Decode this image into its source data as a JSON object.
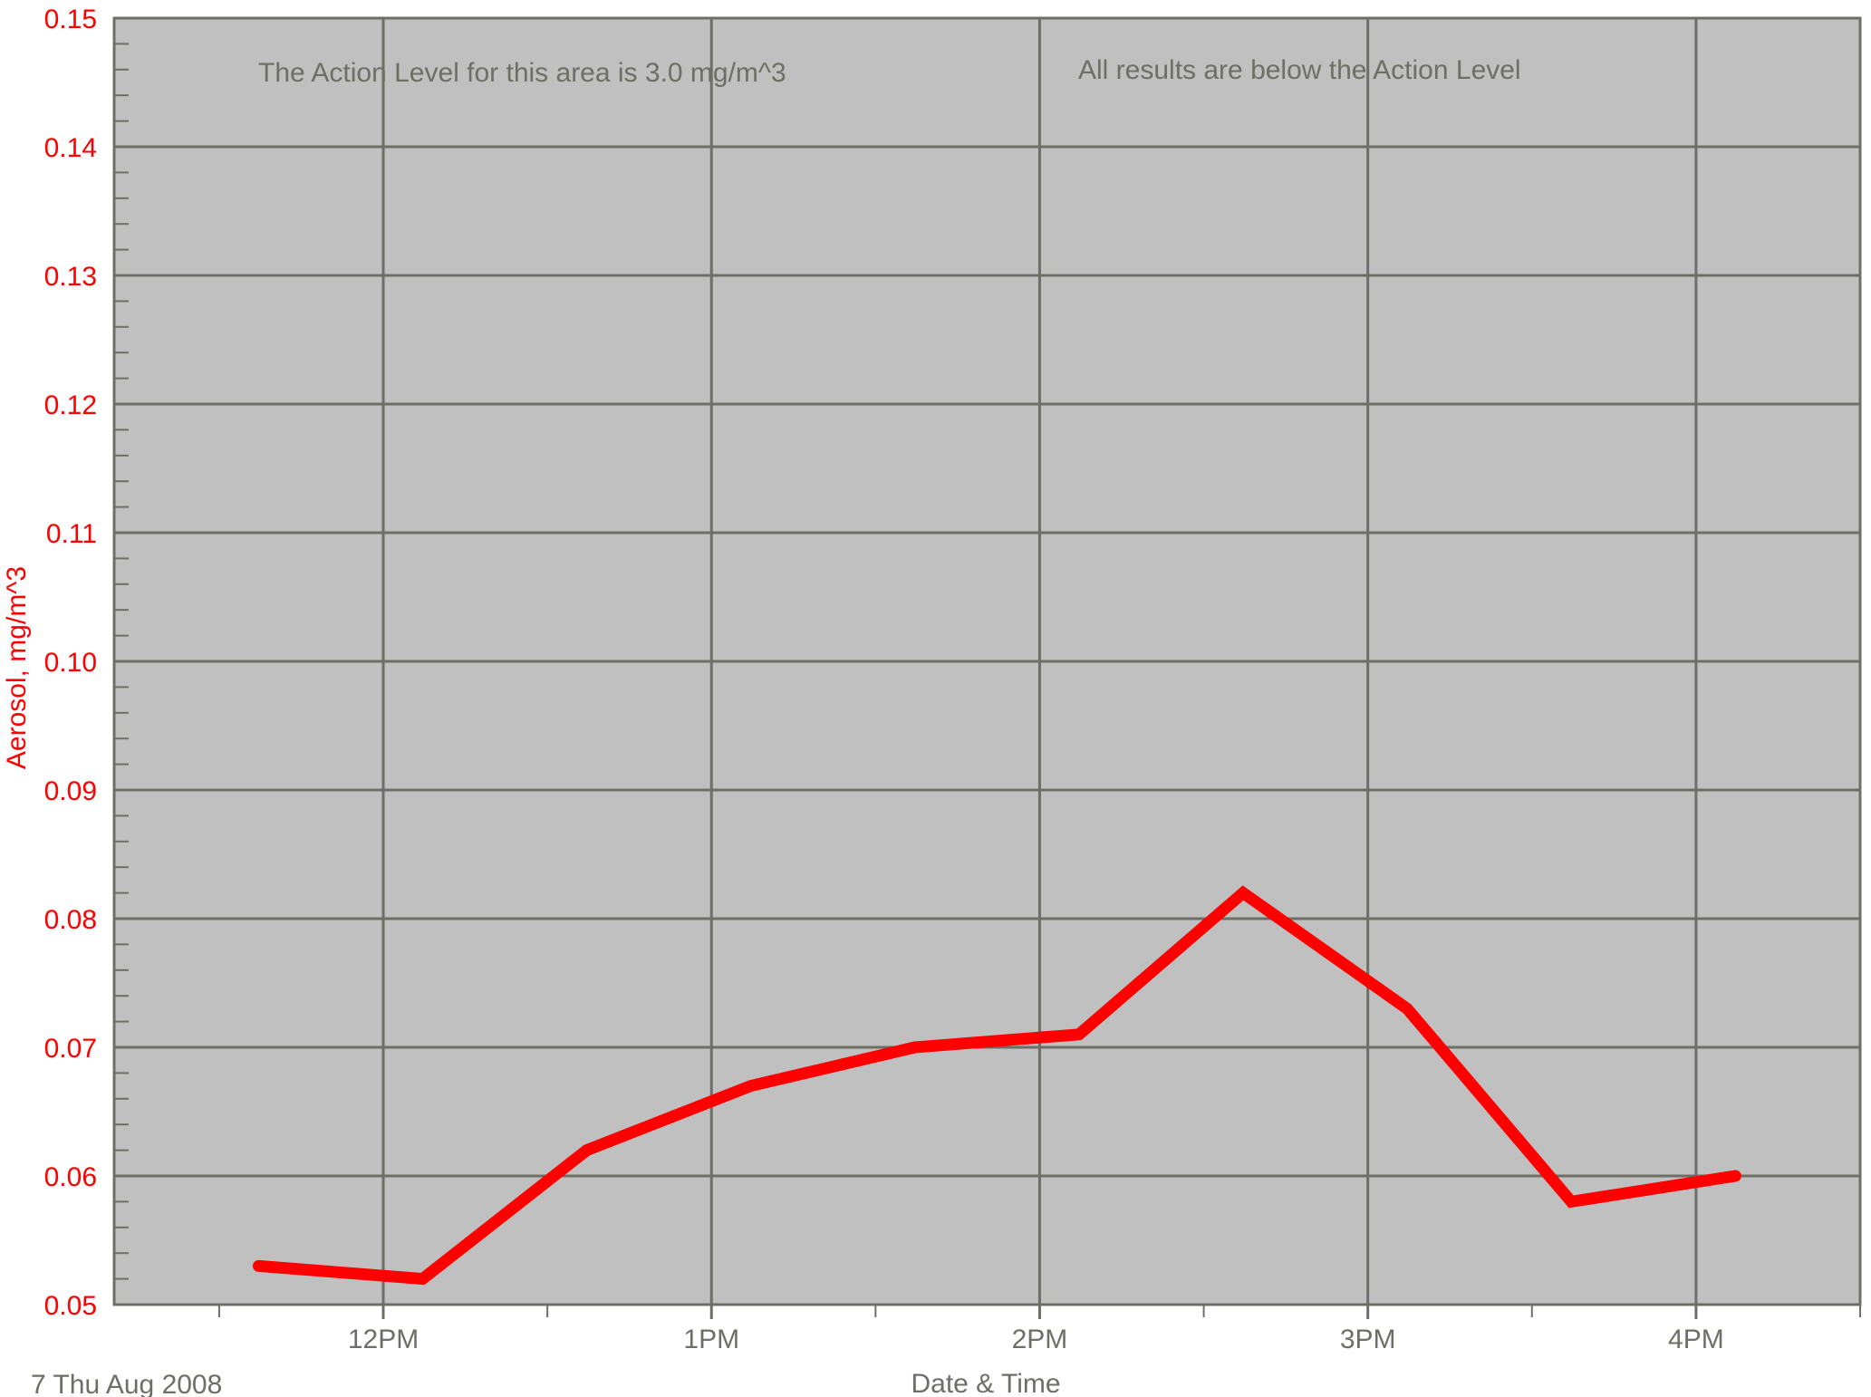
{
  "colors": {
    "background": "#ffffff",
    "plot_area": "#c0c0c0",
    "grid": "#6e6e66",
    "axis_text": "#6e6e66",
    "y_axis_text": "#ff0000",
    "series_line": "#ff0000"
  },
  "chart_data": {
    "type": "line",
    "title": "",
    "xlabel": "Date & Time",
    "ylabel": "Aerosol, mg/m^3",
    "date_label": "7 Thu Aug 2008",
    "annotations": [
      "The Action Level for this area is 3.0 mg/m^3",
      "All results are below the Action Level"
    ],
    "x_ticks": [
      {
        "label": "12PM",
        "hour": 12
      },
      {
        "label": "1PM",
        "hour": 13
      },
      {
        "label": "2PM",
        "hour": 14
      },
      {
        "label": "3PM",
        "hour": 15
      },
      {
        "label": "4PM",
        "hour": 16
      }
    ],
    "xlim": [
      11.18,
      16.5
    ],
    "ylim": [
      0.05,
      0.15
    ],
    "y_ticks": [
      "0.05",
      "0.06",
      "0.07",
      "0.08",
      "0.09",
      "0.10",
      "0.11",
      "0.12",
      "0.13",
      "0.14",
      "0.15"
    ],
    "grid": true,
    "series": [
      {
        "x": [
          11.62,
          12.12,
          12.62,
          13.12,
          13.62,
          14.12,
          14.62,
          15.12,
          15.62,
          16.12
        ],
        "y": [
          0.053,
          0.052,
          0.062,
          0.067,
          0.07,
          0.071,
          0.082,
          0.073,
          0.058,
          0.06
        ]
      }
    ]
  }
}
